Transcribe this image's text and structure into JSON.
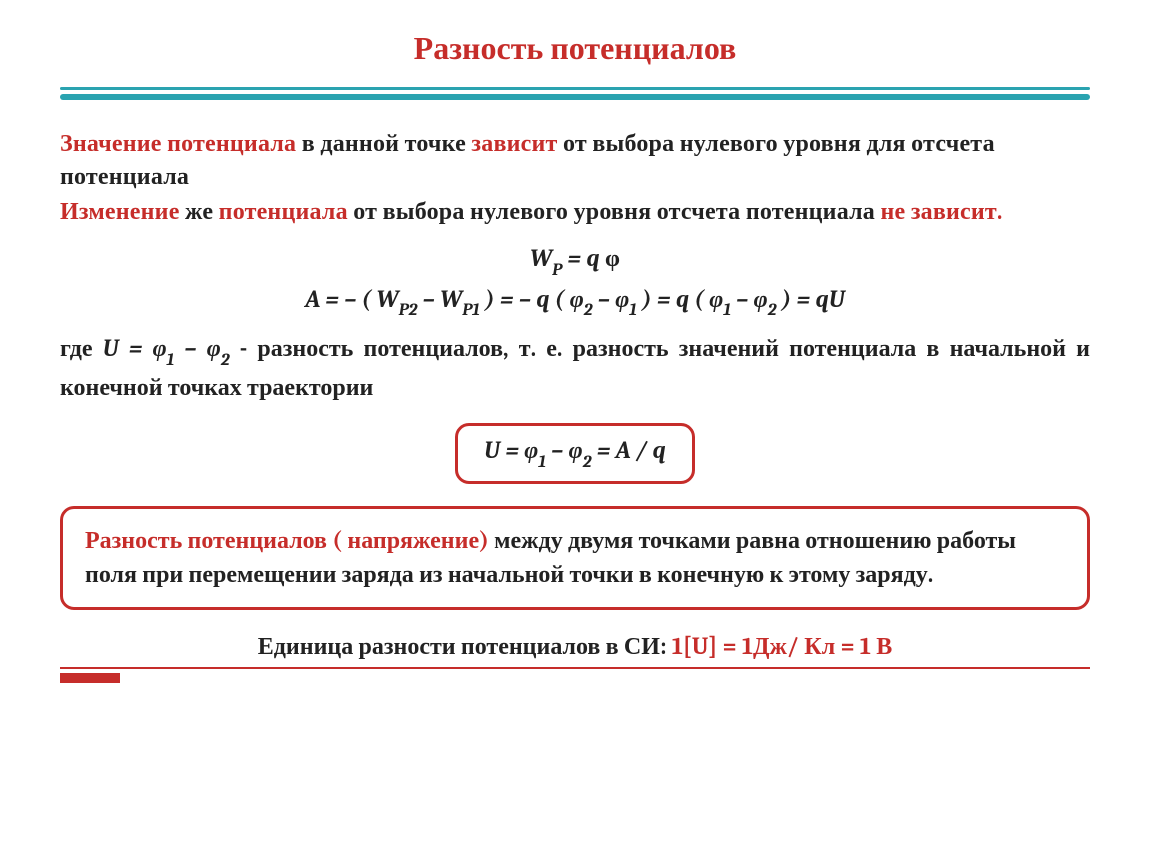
{
  "colors": {
    "accent_red": "#c62d2a",
    "teal": "#2aa3b0",
    "text": "#222222",
    "background": "#ffffff"
  },
  "title": {
    "text": "Разность потенциалов",
    "fontsize": 32,
    "color": "#c62d2a"
  },
  "intro": {
    "fontsize": 24,
    "line1_part1": "Значение потенциала",
    "line1_part2": " в данной точке ",
    "line1_part3": "зависит",
    "line1_part4": " от выбора нулевого уровня для отсчета потенциала",
    "line2_part1": "Изменение",
    "line2_part2": " же ",
    "line2_part3": "потенциала",
    "line2_part4": " от выбора нулевого уровня отсчета потенциала ",
    "line2_part5": "не зависит."
  },
  "formulas": {
    "fontsize": 24,
    "eq1_left": "W",
    "eq1_sub": "P",
    "eq1_mid": " = q ",
    "eq1_phi": "φ",
    "eq2": "A = – ( W",
    "eq2_sub1": "P2",
    "eq2_mid1": "  –  W",
    "eq2_sub2": "P1",
    "eq2_mid2": " ) = – q ( φ",
    "eq2_sub3": "2",
    "eq2_mid3": " – φ",
    "eq2_sub4": "1",
    "eq2_mid4": " ) = q ( φ",
    "eq2_sub5": "1",
    "eq2_mid5": " – φ",
    "eq2_sub6": "2",
    "eq2_mid6": " ) = qU"
  },
  "where": {
    "fontsize": 24,
    "part1": "где  ",
    "U": "U = φ",
    "sub1": "1",
    "mid": " – φ",
    "sub2": "2",
    "part2": "  - разность  потенциалов,  т. е.  разность  значений  потенциала  в  начальной  и  конечной  точках  траектории"
  },
  "boxed_formula": {
    "fontsize": 24,
    "U": "U =  φ",
    "sub1": "1",
    "mid": " – φ",
    "sub2": "2",
    "tail": "  =  A / q"
  },
  "definition": {
    "fontsize": 24,
    "part1": "Разность потенциалов ( напряжение)",
    "part2": " между двумя точками равна отношению работы поля при перемещении заряда из начальной точки в конечную к этому заряду."
  },
  "units": {
    "fontsize": 24,
    "label": "Единица  разности  потенциалов  в СИ:   ",
    "value": "1[U] = 1Дж/ Кл  = 1 В"
  }
}
